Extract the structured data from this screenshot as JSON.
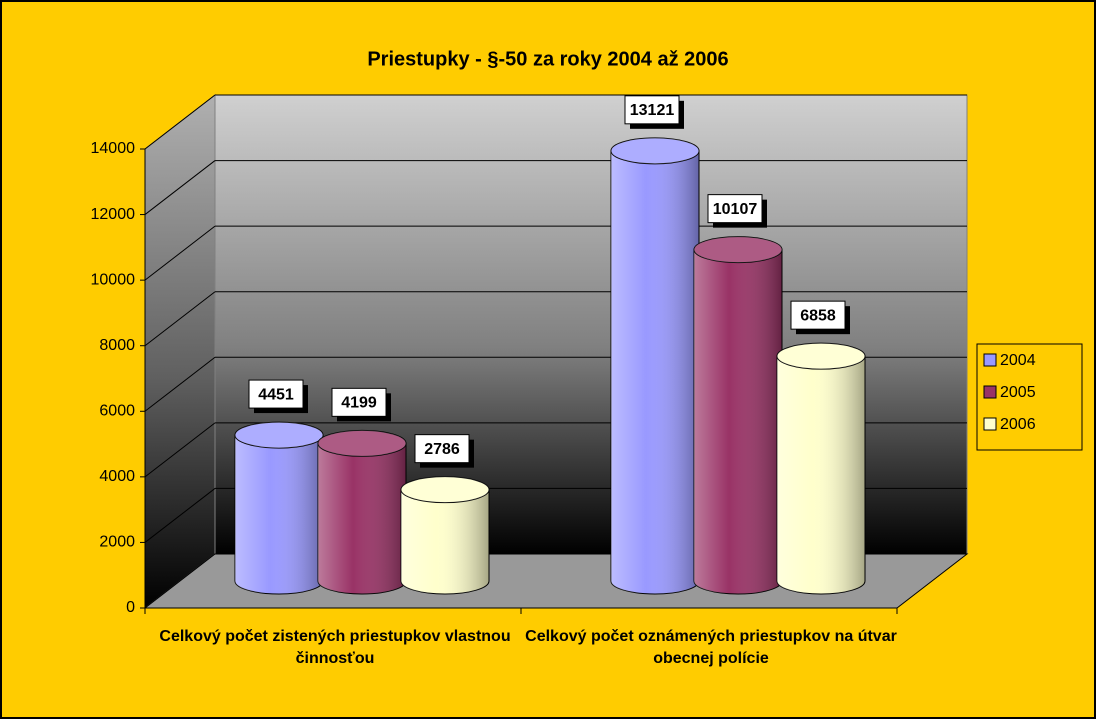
{
  "chart_data": {
    "type": "bar",
    "title": "Priestupky -  §-50 za roky 2004 až 2006",
    "categories": [
      "Celkový počet zistených priestupkov vlastnou činnosťou",
      "Celkový počet oznámených priestupkov na útvar obecnej polície"
    ],
    "series": [
      {
        "name": "2004",
        "color": "#9999ff",
        "values": [
          4451,
          13121
        ]
      },
      {
        "name": "2005",
        "color": "#993366",
        "values": [
          4199,
          10107
        ]
      },
      {
        "name": "2006",
        "color": "#ffffcc",
        "values": [
          2786,
          6858
        ]
      }
    ],
    "ylim": [
      0,
      14000
    ],
    "yticks": [
      0,
      2000,
      4000,
      6000,
      8000,
      10000,
      12000,
      14000
    ],
    "grid": true,
    "legend": "right"
  }
}
